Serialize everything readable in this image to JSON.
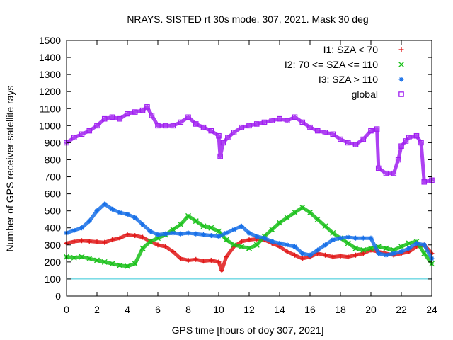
{
  "chart_data": {
    "type": "scatter",
    "title": "NRAYS. SISTED rt 30s mode. 307, 2021. Mask 30 deg",
    "xlabel": "GPS time [hours of doy 307, 2021]",
    "ylabel": "Number of GPS receiver-satellite rays",
    "xlim": [
      0,
      24
    ],
    "ylim": [
      0,
      1500
    ],
    "xticks": [
      0,
      2,
      4,
      6,
      8,
      10,
      12,
      14,
      16,
      18,
      20,
      22,
      24
    ],
    "yticks": [
      0,
      100,
      200,
      300,
      400,
      500,
      600,
      700,
      800,
      900,
      1000,
      1100,
      1200,
      1300,
      1400,
      1500
    ],
    "grid": false,
    "legend_position": "top-right",
    "reference_line": {
      "y": 100,
      "color": "#30c8d8"
    },
    "series": [
      {
        "name": "I1: SZA < 70",
        "color": "#e01818",
        "marker": "plus",
        "x": [
          0,
          0.5,
          1,
          1.5,
          2,
          2.5,
          3,
          3.5,
          4,
          4.5,
          5,
          5.5,
          6,
          6.5,
          7,
          7.5,
          8,
          8.5,
          9,
          9.5,
          10,
          10.2,
          10.5,
          11,
          11.5,
          12,
          12.5,
          13,
          13.5,
          14,
          14.5,
          15,
          15.5,
          16,
          16.5,
          17,
          17.5,
          18,
          18.5,
          19,
          19.5,
          20,
          20.5,
          21,
          21.5,
          22,
          22.5,
          23,
          23.5,
          24
        ],
        "y": [
          310,
          320,
          325,
          322,
          318,
          315,
          330,
          340,
          360,
          355,
          345,
          320,
          300,
          290,
          260,
          220,
          210,
          215,
          205,
          210,
          200,
          150,
          230,
          290,
          320,
          330,
          335,
          330,
          310,
          290,
          260,
          240,
          220,
          230,
          250,
          240,
          230,
          235,
          230,
          240,
          250,
          270,
          260,
          250,
          240,
          250,
          260,
          290,
          300,
          250
        ]
      },
      {
        "name": "I2: 70 <= SZA <= 110",
        "color": "#18c018",
        "marker": "x",
        "x": [
          0,
          0.5,
          1,
          1.5,
          2,
          2.5,
          3,
          3.5,
          4,
          4.5,
          5,
          5.5,
          6,
          6.5,
          7,
          7.5,
          8,
          8.5,
          9,
          9.5,
          10,
          10.5,
          11,
          11.5,
          12,
          12.5,
          13,
          13.5,
          14,
          14.5,
          15,
          15.5,
          16,
          16.5,
          17,
          17.5,
          18,
          18.5,
          19,
          19.5,
          20,
          20.5,
          21,
          21.5,
          22,
          22.5,
          23,
          23.5,
          24
        ],
        "y": [
          230,
          225,
          230,
          220,
          210,
          200,
          190,
          180,
          175,
          190,
          280,
          320,
          340,
          360,
          390,
          420,
          470,
          440,
          410,
          400,
          380,
          330,
          300,
          290,
          280,
          300,
          350,
          390,
          430,
          460,
          490,
          520,
          490,
          450,
          410,
          370,
          340,
          310,
          280,
          270,
          280,
          290,
          280,
          270,
          290,
          310,
          320,
          250,
          190
        ]
      },
      {
        "name": "I3: SZA > 110",
        "color": "#1870e8",
        "marker": "star",
        "x": [
          0,
          0.5,
          1,
          1.5,
          2,
          2.5,
          3,
          3.5,
          4,
          4.5,
          5,
          5.5,
          6,
          6.5,
          7,
          7.5,
          8,
          8.5,
          9,
          9.5,
          10,
          10.5,
          11,
          11.5,
          12,
          12.5,
          13,
          13.5,
          14,
          14.5,
          15,
          15.5,
          16,
          16.5,
          17,
          17.5,
          18,
          18.5,
          19,
          19.5,
          20,
          20.5,
          21,
          21.5,
          22,
          22.5,
          23,
          23.5,
          24
        ],
        "y": [
          370,
          385,
          400,
          440,
          500,
          540,
          510,
          490,
          480,
          460,
          420,
          380,
          360,
          365,
          370,
          365,
          370,
          365,
          360,
          355,
          350,
          370,
          390,
          410,
          370,
          350,
          340,
          320,
          310,
          300,
          290,
          250,
          240,
          270,
          300,
          330,
          340,
          345,
          340,
          340,
          340,
          250,
          240,
          250,
          260,
          280,
          310,
          300,
          220
        ]
      },
      {
        "name": "global",
        "color": "#a020f0",
        "marker": "square",
        "x": [
          0,
          0.5,
          1,
          1.5,
          2,
          2.5,
          3,
          3.5,
          4,
          4.5,
          5,
          5.3,
          5.6,
          6,
          6.5,
          7,
          7.5,
          8,
          8.5,
          9,
          9.5,
          10,
          10.1,
          10.3,
          10.6,
          11,
          11.5,
          12,
          12.5,
          13,
          13.5,
          14,
          14.5,
          15,
          15.5,
          16,
          16.5,
          17,
          17.5,
          18,
          18.5,
          19,
          19.5,
          20,
          20.4,
          20.5,
          21,
          21.5,
          21.8,
          22,
          22.3,
          22.5,
          23,
          23.3,
          23.5,
          24
        ],
        "y": [
          900,
          930,
          950,
          970,
          1000,
          1040,
          1050,
          1040,
          1070,
          1080,
          1090,
          1110,
          1060,
          1000,
          1000,
          1000,
          1020,
          1050,
          1010,
          990,
          970,
          940,
          820,
          900,
          930,
          960,
          990,
          1000,
          1010,
          1020,
          1030,
          1040,
          1030,
          1050,
          1020,
          990,
          970,
          960,
          950,
          920,
          900,
          890,
          920,
          970,
          980,
          750,
          720,
          720,
          800,
          880,
          910,
          930,
          940,
          900,
          670,
          680
        ]
      }
    ]
  }
}
